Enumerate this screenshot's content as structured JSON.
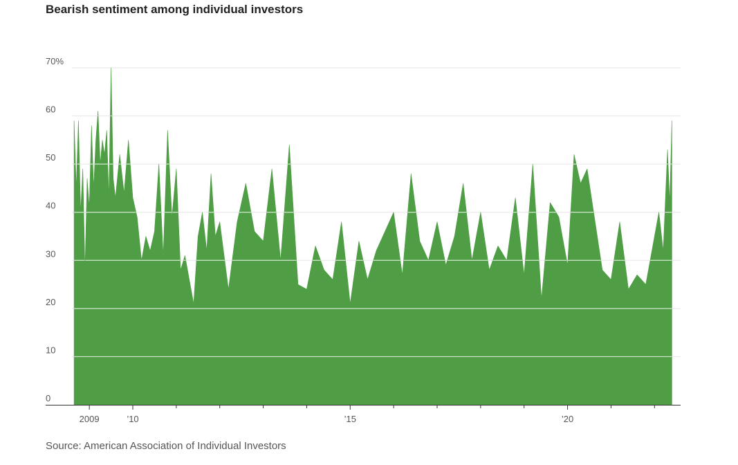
{
  "title": "Bearish sentiment among individual investors",
  "source": "Source: American Association of Individual Investors",
  "colors": {
    "fill": "#4f9e45",
    "gridline": "#ffffff",
    "gridline_outside": "#e6e6e6",
    "axis": "#333333"
  },
  "chart_data": {
    "type": "area",
    "title": "Bearish sentiment among individual investors",
    "xlabel": "",
    "ylabel": "",
    "xlim": [
      2008.6,
      2022.6
    ],
    "ylim": [
      0,
      70
    ],
    "y_ticks": [
      0,
      10,
      20,
      30,
      40,
      50,
      60,
      70
    ],
    "y_tick_labels": [
      "0",
      "10",
      "20",
      "30",
      "40",
      "50",
      "60",
      "70%"
    ],
    "x_ticks": [
      2009,
      2010,
      2015,
      2020
    ],
    "x_tick_labels": [
      "2009",
      "’10",
      "’15",
      "’20"
    ],
    "grid": true,
    "series": [
      {
        "name": "",
        "x": [
          2008.65,
          2008.7,
          2008.75,
          2008.8,
          2008.85,
          2008.9,
          2008.95,
          2009.0,
          2009.05,
          2009.1,
          2009.15,
          2009.2,
          2009.25,
          2009.3,
          2009.35,
          2009.4,
          2009.45,
          2009.5,
          2009.55,
          2009.6,
          2009.7,
          2009.8,
          2009.9,
          2010.0,
          2010.1,
          2010.2,
          2010.3,
          2010.4,
          2010.5,
          2010.6,
          2010.7,
          2010.8,
          2010.9,
          2011.0,
          2011.1,
          2011.2,
          2011.3,
          2011.4,
          2011.5,
          2011.6,
          2011.7,
          2011.8,
          2011.9,
          2012.0,
          2012.2,
          2012.4,
          2012.6,
          2012.8,
          2013.0,
          2013.2,
          2013.4,
          2013.6,
          2013.8,
          2014.0,
          2014.2,
          2014.4,
          2014.6,
          2014.8,
          2015.0,
          2015.2,
          2015.4,
          2015.6,
          2015.8,
          2016.0,
          2016.2,
          2016.4,
          2016.6,
          2016.8,
          2017.0,
          2017.2,
          2017.4,
          2017.6,
          2017.8,
          2018.0,
          2018.2,
          2018.4,
          2018.6,
          2018.8,
          2019.0,
          2019.2,
          2019.4,
          2019.6,
          2019.8,
          2020.0,
          2020.15,
          2020.3,
          2020.45,
          2020.6,
          2020.8,
          2021.0,
          2021.2,
          2021.4,
          2021.6,
          2021.8,
          2022.0,
          2022.1,
          2022.2,
          2022.3,
          2022.35,
          2022.4
        ],
        "values": [
          59,
          45,
          59,
          40,
          49,
          28,
          47,
          41,
          58,
          45,
          55,
          61,
          50,
          55,
          52,
          57,
          43,
          70,
          47,
          43,
          52,
          44,
          55,
          43,
          39,
          30,
          35,
          32,
          36,
          50,
          31,
          57,
          39,
          49,
          28,
          31,
          26,
          21,
          35,
          40,
          32,
          48,
          35,
          38,
          24,
          38,
          46,
          36,
          34,
          49,
          30,
          54,
          25,
          24,
          33,
          28,
          26,
          38,
          21,
          34,
          26,
          32,
          36,
          40,
          27,
          48,
          34,
          30,
          38,
          29,
          35,
          46,
          30,
          40,
          28,
          33,
          30,
          43,
          27,
          50,
          22,
          42,
          39,
          29,
          52,
          46,
          49,
          40,
          28,
          26,
          38,
          24,
          27,
          25,
          35,
          40,
          32,
          53,
          42,
          59
        ]
      }
    ]
  }
}
